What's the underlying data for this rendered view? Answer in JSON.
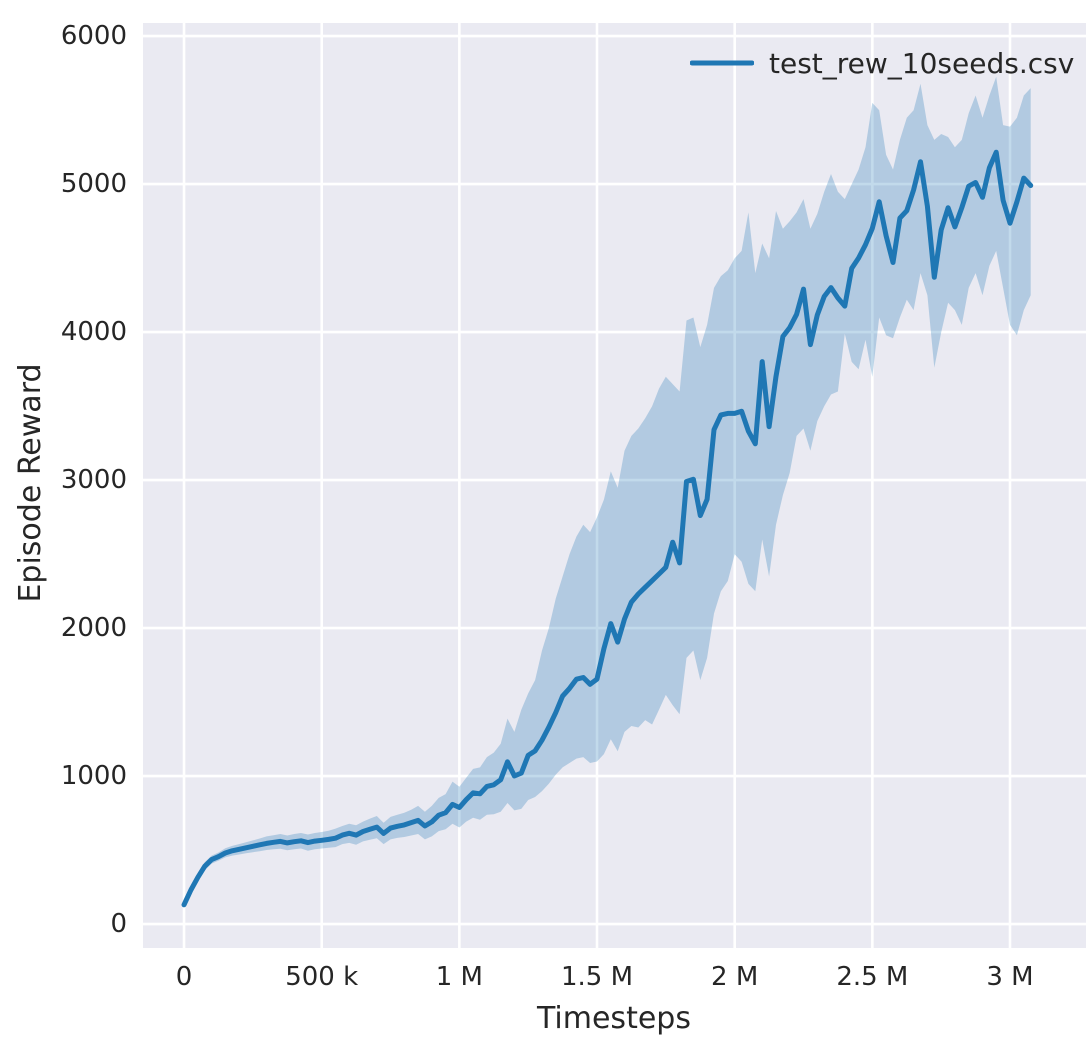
{
  "figure": {
    "background": "#ffffff",
    "axes_background": "#eaeaf2",
    "grid_color": "#ffffff",
    "text_color": "#262626"
  },
  "chart_data": {
    "type": "line",
    "title": "",
    "xlabel": "Timesteps",
    "ylabel": "Episode Reward",
    "grid": true,
    "legend_position": "upper right",
    "xlim": [
      -149000,
      3276000
    ],
    "ylim": [
      -162,
      6088
    ],
    "x_ticks": [
      {
        "value": 0,
        "label": "0"
      },
      {
        "value": 500000,
        "label": "500 k"
      },
      {
        "value": 1000000,
        "label": "1 M"
      },
      {
        "value": 1500000,
        "label": "1.5 M"
      },
      {
        "value": 2000000,
        "label": "2 M"
      },
      {
        "value": 2500000,
        "label": "2.5 M"
      },
      {
        "value": 3000000,
        "label": "3 M"
      }
    ],
    "y_ticks": [
      {
        "value": 0,
        "label": "0"
      },
      {
        "value": 1000,
        "label": "1000"
      },
      {
        "value": 2000,
        "label": "2000"
      },
      {
        "value": 3000,
        "label": "3000"
      },
      {
        "value": 4000,
        "label": "4000"
      },
      {
        "value": 5000,
        "label": "5000"
      },
      {
        "value": 6000,
        "label": "6000"
      }
    ],
    "series": [
      {
        "name": "test_rew_10seeds.csv",
        "color": "#1f77b4",
        "line_width": 5,
        "band_opacity": 0.27,
        "x_start": 0,
        "x_step": 25000,
        "mean": [
          130,
          230,
          315,
          390,
          435,
          455,
          480,
          495,
          505,
          515,
          525,
          535,
          545,
          552,
          558,
          548,
          556,
          562,
          550,
          560,
          566,
          572,
          580,
          601,
          613,
          601,
          625,
          640,
          655,
          612,
          648,
          660,
          670,
          685,
          700,
          662,
          690,
          735,
          752,
          808,
          787,
          840,
          886,
          880,
          930,
          941,
          975,
          1096,
          1000,
          1020,
          1140,
          1170,
          1242,
          1330,
          1428,
          1540,
          1592,
          1654,
          1666,
          1620,
          1655,
          1860,
          2030,
          1905,
          2060,
          2175,
          2230,
          2275,
          2320,
          2365,
          2410,
          2580,
          2440,
          2990,
          3005,
          2760,
          2870,
          3340,
          3440,
          3450,
          3450,
          3465,
          3330,
          3245,
          3800,
          3360,
          3700,
          3970,
          4030,
          4120,
          4290,
          3915,
          4115,
          4240,
          4300,
          4230,
          4175,
          4430,
          4500,
          4590,
          4700,
          4880,
          4650,
          4470,
          4770,
          4820,
          4960,
          5150,
          4850,
          4370,
          4690,
          4840,
          4710,
          4840,
          4985,
          5010,
          4910,
          5110,
          5215,
          4890,
          4735,
          4880,
          5040,
          4990
        ],
        "lo": [
          112,
          205,
          290,
          362,
          408,
          428,
          450,
          462,
          470,
          478,
          485,
          492,
          500,
          505,
          508,
          498,
          505,
          510,
          495,
          505,
          510,
          515,
          520,
          540,
          548,
          535,
          558,
          570,
          580,
          540,
          572,
          582,
          588,
          598,
          608,
          572,
          592,
          628,
          640,
          678,
          652,
          692,
          718,
          705,
          738,
          742,
          758,
          818,
          768,
          778,
          838,
          858,
          898,
          948,
          1008,
          1058,
          1088,
          1118,
          1128,
          1088,
          1098,
          1148,
          1248,
          1168,
          1298,
          1338,
          1328,
          1378,
          1348,
          1448,
          1548,
          1478,
          1418,
          1798,
          1848,
          1648,
          1798,
          2098,
          2248,
          2318,
          2498,
          2448,
          2298,
          2248,
          2598,
          2348,
          2698,
          2898,
          3048,
          3298,
          3348,
          3198,
          3398,
          3498,
          3578,
          3598,
          3988,
          3798,
          3748,
          3948,
          3698,
          4098,
          3978,
          3958,
          4098,
          4218,
          4148,
          4398,
          4248,
          3758,
          3998,
          4198,
          4148,
          4048,
          4298,
          4398,
          4248,
          4448,
          4548,
          4298,
          4048,
          3978,
          4148,
          4248
        ],
        "hi": [
          150,
          258,
          342,
          418,
          462,
          483,
          512,
          528,
          540,
          552,
          565,
          578,
          592,
          600,
          608,
          598,
          608,
          615,
          605,
          615,
          622,
          630,
          645,
          662,
          678,
          668,
          692,
          712,
          730,
          684,
          724,
          738,
          752,
          772,
          798,
          758,
          798,
          852,
          878,
          962,
          928,
          988,
          1048,
          1058,
          1128,
          1158,
          1218,
          1388,
          1298,
          1448,
          1558,
          1648,
          1848,
          1998,
          2198,
          2348,
          2498,
          2618,
          2698,
          2648,
          2748,
          2868,
          3058,
          2948,
          3198,
          3298,
          3348,
          3418,
          3498,
          3618,
          3698,
          3648,
          3598,
          4078,
          4098,
          3898,
          4048,
          4298,
          4378,
          4418,
          4498,
          4548,
          4808,
          4398,
          4598,
          4498,
          4818,
          4698,
          4748,
          4808,
          4898,
          4698,
          4798,
          4948,
          5068,
          4948,
          4898,
          4998,
          5098,
          5248,
          5548,
          5498,
          5198,
          5098,
          5298,
          5448,
          5498,
          5678,
          5398,
          5298,
          5338,
          5318,
          5248,
          5298,
          5478,
          5598,
          5448,
          5598,
          5725,
          5398,
          5388,
          5448,
          5598,
          5648
        ]
      }
    ]
  },
  "legend": {
    "label": "test_rew_10seeds.csv"
  }
}
